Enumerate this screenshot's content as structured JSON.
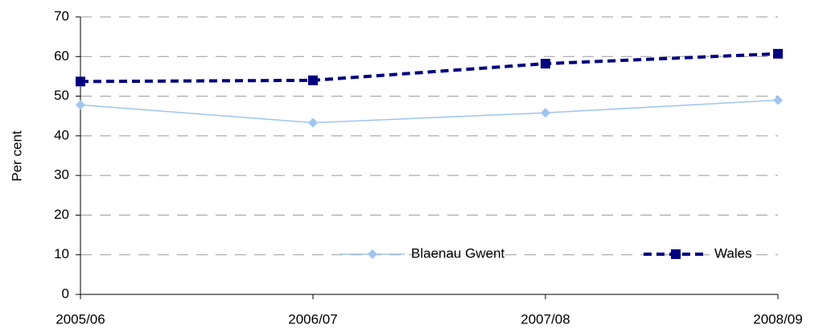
{
  "chart_data": {
    "type": "line",
    "y_label": "Per cent",
    "categories": [
      "2005/06",
      "2006/07",
      "2007/08",
      "2008/09"
    ],
    "series": [
      {
        "name": "Blaenau Gwent",
        "color": "#9fc5f0",
        "marker": "diamond",
        "line_style": "solid",
        "values": [
          47.8,
          43.3,
          45.8,
          49.0
        ]
      },
      {
        "name": "Wales",
        "color": "#00007f",
        "marker": "square",
        "line_style": "dashed",
        "values": [
          53.7,
          54.0,
          58.2,
          60.7
        ]
      }
    ],
    "ylim": [
      0,
      70
    ],
    "yticks": [
      0,
      10,
      20,
      30,
      40,
      50,
      60,
      70
    ],
    "grid": true,
    "legend": "bottom"
  }
}
